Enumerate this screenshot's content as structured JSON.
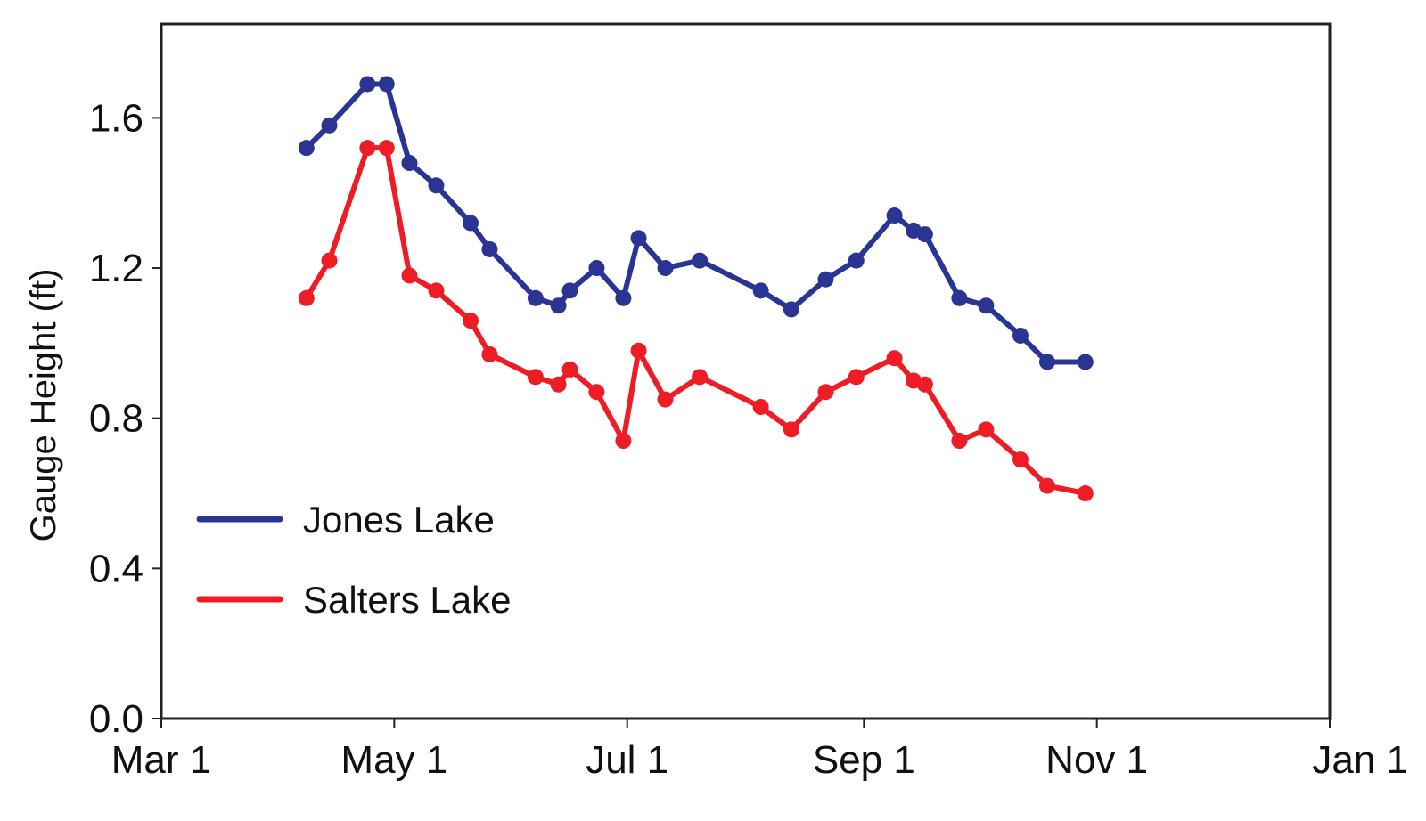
{
  "chart_data": {
    "type": "line",
    "ylabel": "Gauge Height (ft)",
    "xlabel": "",
    "x_ticks": [
      {
        "label": "Mar 1",
        "date": "2000-03-01"
      },
      {
        "label": "May 1",
        "date": "2000-05-01"
      },
      {
        "label": "Jul 1",
        "date": "2000-07-01"
      },
      {
        "label": "Sep 1",
        "date": "2000-09-01"
      },
      {
        "label": "Nov 1",
        "date": "2000-11-01"
      },
      {
        "label": "Jan 1",
        "date": "2001-01-01"
      }
    ],
    "xlim": [
      "2000-03-01",
      "2001-01-01"
    ],
    "y_ticks": [
      "0.0",
      "0.4",
      "0.8",
      "1.2",
      "1.6"
    ],
    "ylim": [
      0,
      1.85
    ],
    "grid": false,
    "legend": "bottom-left",
    "series": [
      {
        "name": "Jones Lake",
        "color": "#2a3593",
        "points": [
          [
            "2000-04-08",
            1.52
          ],
          [
            "2000-04-14",
            1.58
          ],
          [
            "2000-04-24",
            1.69
          ],
          [
            "2000-04-29",
            1.69
          ],
          [
            "2000-05-05",
            1.48
          ],
          [
            "2000-05-12",
            1.42
          ],
          [
            "2000-05-21",
            1.32
          ],
          [
            "2000-05-26",
            1.25
          ],
          [
            "2000-06-07",
            1.12
          ],
          [
            "2000-06-13",
            1.1
          ],
          [
            "2000-06-16",
            1.14
          ],
          [
            "2000-06-23",
            1.2
          ],
          [
            "2000-06-30",
            1.12
          ],
          [
            "2000-07-04",
            1.28
          ],
          [
            "2000-07-11",
            1.2
          ],
          [
            "2000-07-20",
            1.22
          ],
          [
            "2000-08-05",
            1.14
          ],
          [
            "2000-08-13",
            1.09
          ],
          [
            "2000-08-22",
            1.17
          ],
          [
            "2000-08-30",
            1.22
          ],
          [
            "2000-09-09",
            1.34
          ],
          [
            "2000-09-14",
            1.3
          ],
          [
            "2000-09-17",
            1.29
          ],
          [
            "2000-09-26",
            1.12
          ],
          [
            "2000-10-03",
            1.1
          ],
          [
            "2000-10-12",
            1.02
          ],
          [
            "2000-10-19",
            0.95
          ],
          [
            "2000-10-29",
            0.95
          ]
        ]
      },
      {
        "name": "Salters Lake",
        "color": "#ee1c25",
        "points": [
          [
            "2000-04-08",
            1.12
          ],
          [
            "2000-04-14",
            1.22
          ],
          [
            "2000-04-24",
            1.52
          ],
          [
            "2000-04-29",
            1.52
          ],
          [
            "2000-05-05",
            1.18
          ],
          [
            "2000-05-12",
            1.14
          ],
          [
            "2000-05-21",
            1.06
          ],
          [
            "2000-05-26",
            0.97
          ],
          [
            "2000-06-07",
            0.91
          ],
          [
            "2000-06-13",
            0.89
          ],
          [
            "2000-06-16",
            0.93
          ],
          [
            "2000-06-23",
            0.87
          ],
          [
            "2000-06-30",
            0.74
          ],
          [
            "2000-07-04",
            0.98
          ],
          [
            "2000-07-11",
            0.85
          ],
          [
            "2000-07-20",
            0.91
          ],
          [
            "2000-08-05",
            0.83
          ],
          [
            "2000-08-13",
            0.77
          ],
          [
            "2000-08-22",
            0.87
          ],
          [
            "2000-08-30",
            0.91
          ],
          [
            "2000-09-09",
            0.96
          ],
          [
            "2000-09-14",
            0.9
          ],
          [
            "2000-09-17",
            0.89
          ],
          [
            "2000-09-26",
            0.74
          ],
          [
            "2000-10-03",
            0.77
          ],
          [
            "2000-10-12",
            0.69
          ],
          [
            "2000-10-19",
            0.62
          ],
          [
            "2000-10-29",
            0.6
          ]
        ]
      }
    ]
  }
}
